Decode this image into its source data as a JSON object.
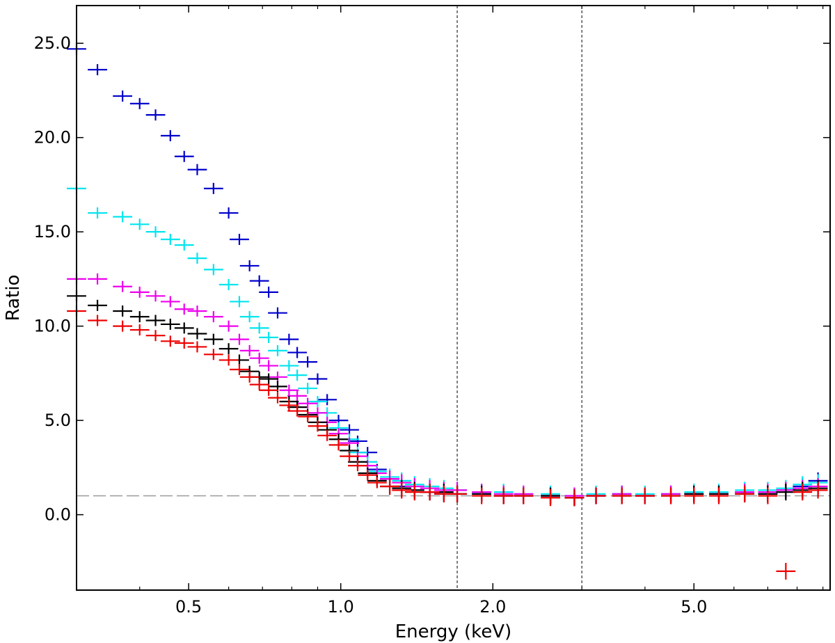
{
  "chart_data": {
    "type": "scatter",
    "title": "",
    "xlabel": "Energy (keV)",
    "ylabel": "Ratio",
    "x_scale": "log",
    "xlim": [
      0.3,
      9.3
    ],
    "ylim": [
      -4.0,
      27.0
    ],
    "x_ticks": [
      {
        "value": 0.5,
        "label": "0.5"
      },
      {
        "value": 1.0,
        "label": "1.0"
      },
      {
        "value": 2.0,
        "label": "2.0"
      },
      {
        "value": 5.0,
        "label": "5.0"
      }
    ],
    "y_ticks": [
      {
        "value": 0,
        "label": "0.0"
      },
      {
        "value": 5,
        "label": "5.0"
      },
      {
        "value": 10,
        "label": "10.0"
      },
      {
        "value": 15,
        "label": "15.0"
      },
      {
        "value": 20,
        "label": "20.0"
      },
      {
        "value": 25,
        "label": "25.0"
      }
    ],
    "grid": false,
    "legend": "none",
    "reference_line": {
      "y": 1.0,
      "color": "#999999"
    },
    "vertical_lines": [
      1.7,
      3.0
    ],
    "series": [
      {
        "color": "#0000cc",
        "points": [
          [
            0.3,
            24.7
          ],
          [
            0.33,
            23.6
          ],
          [
            0.37,
            22.2
          ],
          [
            0.4,
            21.8
          ],
          [
            0.43,
            21.2
          ],
          [
            0.46,
            20.1
          ],
          [
            0.49,
            19.0
          ],
          [
            0.52,
            18.3
          ],
          [
            0.56,
            17.3
          ],
          [
            0.6,
            16.0
          ],
          [
            0.63,
            14.6
          ],
          [
            0.66,
            13.2
          ],
          [
            0.69,
            12.4
          ],
          [
            0.72,
            11.8
          ],
          [
            0.75,
            10.7
          ],
          [
            0.79,
            9.3
          ],
          [
            0.82,
            8.6
          ],
          [
            0.86,
            8.1
          ],
          [
            0.9,
            7.2
          ],
          [
            0.94,
            6.1
          ],
          [
            0.99,
            5.0
          ],
          [
            1.04,
            4.5
          ],
          [
            1.08,
            3.9
          ],
          [
            1.13,
            3.3
          ],
          [
            1.18,
            2.4
          ],
          [
            1.25,
            1.9
          ],
          [
            1.32,
            1.5
          ],
          [
            1.4,
            1.3
          ],
          [
            1.5,
            1.2
          ],
          [
            1.6,
            1.1
          ],
          [
            1.7,
            1.1
          ],
          [
            1.9,
            1.1
          ],
          [
            2.1,
            1.0
          ],
          [
            2.3,
            1.0
          ],
          [
            2.6,
            1.0
          ],
          [
            2.9,
            0.9
          ],
          [
            3.2,
            1.0
          ],
          [
            3.6,
            1.1
          ],
          [
            4.0,
            1.0
          ],
          [
            4.5,
            1.1
          ],
          [
            5.0,
            1.1
          ],
          [
            5.6,
            1.1
          ],
          [
            6.3,
            1.2
          ],
          [
            7.0,
            1.1
          ],
          [
            7.6,
            1.3
          ],
          [
            8.2,
            1.5
          ],
          [
            8.8,
            1.8
          ]
        ]
      },
      {
        "color": "#00e5ee",
        "points": [
          [
            0.3,
            17.3
          ],
          [
            0.33,
            16.0
          ],
          [
            0.37,
            15.8
          ],
          [
            0.4,
            15.4
          ],
          [
            0.43,
            15.0
          ],
          [
            0.46,
            14.6
          ],
          [
            0.49,
            14.3
          ],
          [
            0.52,
            13.6
          ],
          [
            0.56,
            13.0
          ],
          [
            0.6,
            12.2
          ],
          [
            0.63,
            11.3
          ],
          [
            0.66,
            10.5
          ],
          [
            0.69,
            9.9
          ],
          [
            0.72,
            9.4
          ],
          [
            0.75,
            8.7
          ],
          [
            0.79,
            7.9
          ],
          [
            0.82,
            7.4
          ],
          [
            0.86,
            6.7
          ],
          [
            0.9,
            6.0
          ],
          [
            0.94,
            5.4
          ],
          [
            0.99,
            4.6
          ],
          [
            1.04,
            4.0
          ],
          [
            1.08,
            3.3
          ],
          [
            1.13,
            2.8
          ],
          [
            1.18,
            2.3
          ],
          [
            1.25,
            2.0
          ],
          [
            1.32,
            1.8
          ],
          [
            1.4,
            1.6
          ],
          [
            1.5,
            1.5
          ],
          [
            1.6,
            1.4
          ],
          [
            1.7,
            1.3
          ],
          [
            1.9,
            1.2
          ],
          [
            2.1,
            1.2
          ],
          [
            2.3,
            1.1
          ],
          [
            2.6,
            1.1
          ],
          [
            2.9,
            1.0
          ],
          [
            3.2,
            1.1
          ],
          [
            3.6,
            1.1
          ],
          [
            4.0,
            1.1
          ],
          [
            4.5,
            1.1
          ],
          [
            5.0,
            1.2
          ],
          [
            5.6,
            1.2
          ],
          [
            6.3,
            1.3
          ],
          [
            7.0,
            1.3
          ],
          [
            7.6,
            1.4
          ],
          [
            8.2,
            1.6
          ],
          [
            8.8,
            1.7
          ]
        ]
      },
      {
        "color": "#ee00ee",
        "points": [
          [
            0.3,
            12.5
          ],
          [
            0.33,
            12.5
          ],
          [
            0.37,
            12.1
          ],
          [
            0.4,
            11.8
          ],
          [
            0.43,
            11.6
          ],
          [
            0.46,
            11.3
          ],
          [
            0.49,
            10.9
          ],
          [
            0.52,
            10.8
          ],
          [
            0.56,
            10.5
          ],
          [
            0.6,
            10.0
          ],
          [
            0.63,
            9.3
          ],
          [
            0.66,
            8.7
          ],
          [
            0.69,
            8.3
          ],
          [
            0.72,
            7.9
          ],
          [
            0.75,
            7.3
          ],
          [
            0.79,
            6.6
          ],
          [
            0.82,
            6.3
          ],
          [
            0.86,
            5.9
          ],
          [
            0.9,
            5.4
          ],
          [
            0.94,
            4.9
          ],
          [
            0.99,
            4.3
          ],
          [
            1.04,
            3.8
          ],
          [
            1.08,
            3.1
          ],
          [
            1.13,
            2.6
          ],
          [
            1.18,
            2.2
          ],
          [
            1.25,
            1.9
          ],
          [
            1.32,
            1.7
          ],
          [
            1.4,
            1.5
          ],
          [
            1.5,
            1.4
          ],
          [
            1.6,
            1.3
          ],
          [
            1.7,
            1.3
          ],
          [
            1.9,
            1.2
          ],
          [
            2.1,
            1.1
          ],
          [
            2.3,
            1.1
          ],
          [
            2.6,
            1.0
          ],
          [
            2.9,
            1.0
          ],
          [
            3.2,
            1.0
          ],
          [
            3.6,
            1.1
          ],
          [
            4.0,
            1.0
          ],
          [
            4.5,
            1.1
          ],
          [
            5.0,
            1.1
          ],
          [
            5.6,
            1.1
          ],
          [
            6.3,
            1.2
          ],
          [
            7.0,
            1.2
          ],
          [
            7.6,
            1.3
          ],
          [
            8.2,
            1.4
          ],
          [
            8.8,
            1.5
          ]
        ]
      },
      {
        "color": "#000000",
        "points": [
          [
            0.3,
            11.6
          ],
          [
            0.33,
            11.1
          ],
          [
            0.37,
            10.8
          ],
          [
            0.4,
            10.5
          ],
          [
            0.43,
            10.3
          ],
          [
            0.46,
            10.1
          ],
          [
            0.49,
            9.9
          ],
          [
            0.52,
            9.6
          ],
          [
            0.56,
            9.3
          ],
          [
            0.6,
            8.8
          ],
          [
            0.63,
            8.2
          ],
          [
            0.66,
            7.6
          ],
          [
            0.69,
            7.3
          ],
          [
            0.72,
            7.2
          ],
          [
            0.75,
            6.8
          ],
          [
            0.79,
            6.0
          ],
          [
            0.82,
            5.7
          ],
          [
            0.86,
            5.3
          ],
          [
            0.9,
            4.9
          ],
          [
            0.94,
            4.5
          ],
          [
            0.99,
            4.0
          ],
          [
            1.04,
            3.4
          ],
          [
            1.08,
            2.8
          ],
          [
            1.13,
            2.2
          ],
          [
            1.18,
            1.8
          ],
          [
            1.25,
            1.5
          ],
          [
            1.32,
            1.4
          ],
          [
            1.4,
            1.3
          ],
          [
            1.5,
            1.2
          ],
          [
            1.6,
            1.2
          ],
          [
            1.7,
            1.1
          ],
          [
            1.9,
            1.1
          ],
          [
            2.1,
            1.0
          ],
          [
            2.3,
            1.0
          ],
          [
            2.6,
            1.0
          ],
          [
            2.9,
            0.9
          ],
          [
            3.2,
            1.0
          ],
          [
            3.6,
            1.0
          ],
          [
            4.0,
            1.0
          ],
          [
            4.5,
            1.0
          ],
          [
            5.0,
            1.1
          ],
          [
            5.6,
            1.1
          ],
          [
            6.3,
            1.1
          ],
          [
            7.0,
            1.1
          ],
          [
            7.6,
            1.2
          ],
          [
            8.2,
            1.3
          ],
          [
            8.8,
            1.4
          ]
        ]
      },
      {
        "color": "#ee0000",
        "points": [
          [
            0.3,
            10.8
          ],
          [
            0.33,
            10.3
          ],
          [
            0.37,
            10.0
          ],
          [
            0.4,
            9.8
          ],
          [
            0.43,
            9.5
          ],
          [
            0.46,
            9.2
          ],
          [
            0.49,
            9.1
          ],
          [
            0.52,
            8.9
          ],
          [
            0.56,
            8.5
          ],
          [
            0.6,
            8.2
          ],
          [
            0.63,
            7.7
          ],
          [
            0.66,
            7.3
          ],
          [
            0.69,
            6.9
          ],
          [
            0.72,
            6.6
          ],
          [
            0.75,
            6.2
          ],
          [
            0.79,
            5.8
          ],
          [
            0.82,
            5.5
          ],
          [
            0.86,
            5.2
          ],
          [
            0.9,
            4.7
          ],
          [
            0.94,
            4.2
          ],
          [
            0.99,
            3.7
          ],
          [
            1.04,
            3.1
          ],
          [
            1.08,
            2.6
          ],
          [
            1.13,
            2.1
          ],
          [
            1.18,
            1.7
          ],
          [
            1.25,
            1.5
          ],
          [
            1.32,
            1.3
          ],
          [
            1.4,
            1.2
          ],
          [
            1.5,
            1.2
          ],
          [
            1.6,
            1.1
          ],
          [
            1.7,
            1.1
          ],
          [
            1.9,
            1.0
          ],
          [
            2.1,
            1.0
          ],
          [
            2.3,
            1.0
          ],
          [
            2.6,
            0.9
          ],
          [
            2.9,
            0.9
          ],
          [
            3.2,
            1.0
          ],
          [
            3.6,
            1.0
          ],
          [
            4.0,
            1.0
          ],
          [
            4.5,
            1.0
          ],
          [
            5.0,
            1.0
          ],
          [
            5.6,
            1.0
          ],
          [
            6.3,
            1.1
          ],
          [
            7.0,
            1.0
          ],
          [
            7.6,
            -3.0
          ],
          [
            8.2,
            1.2
          ],
          [
            8.8,
            1.3
          ]
        ]
      }
    ]
  }
}
